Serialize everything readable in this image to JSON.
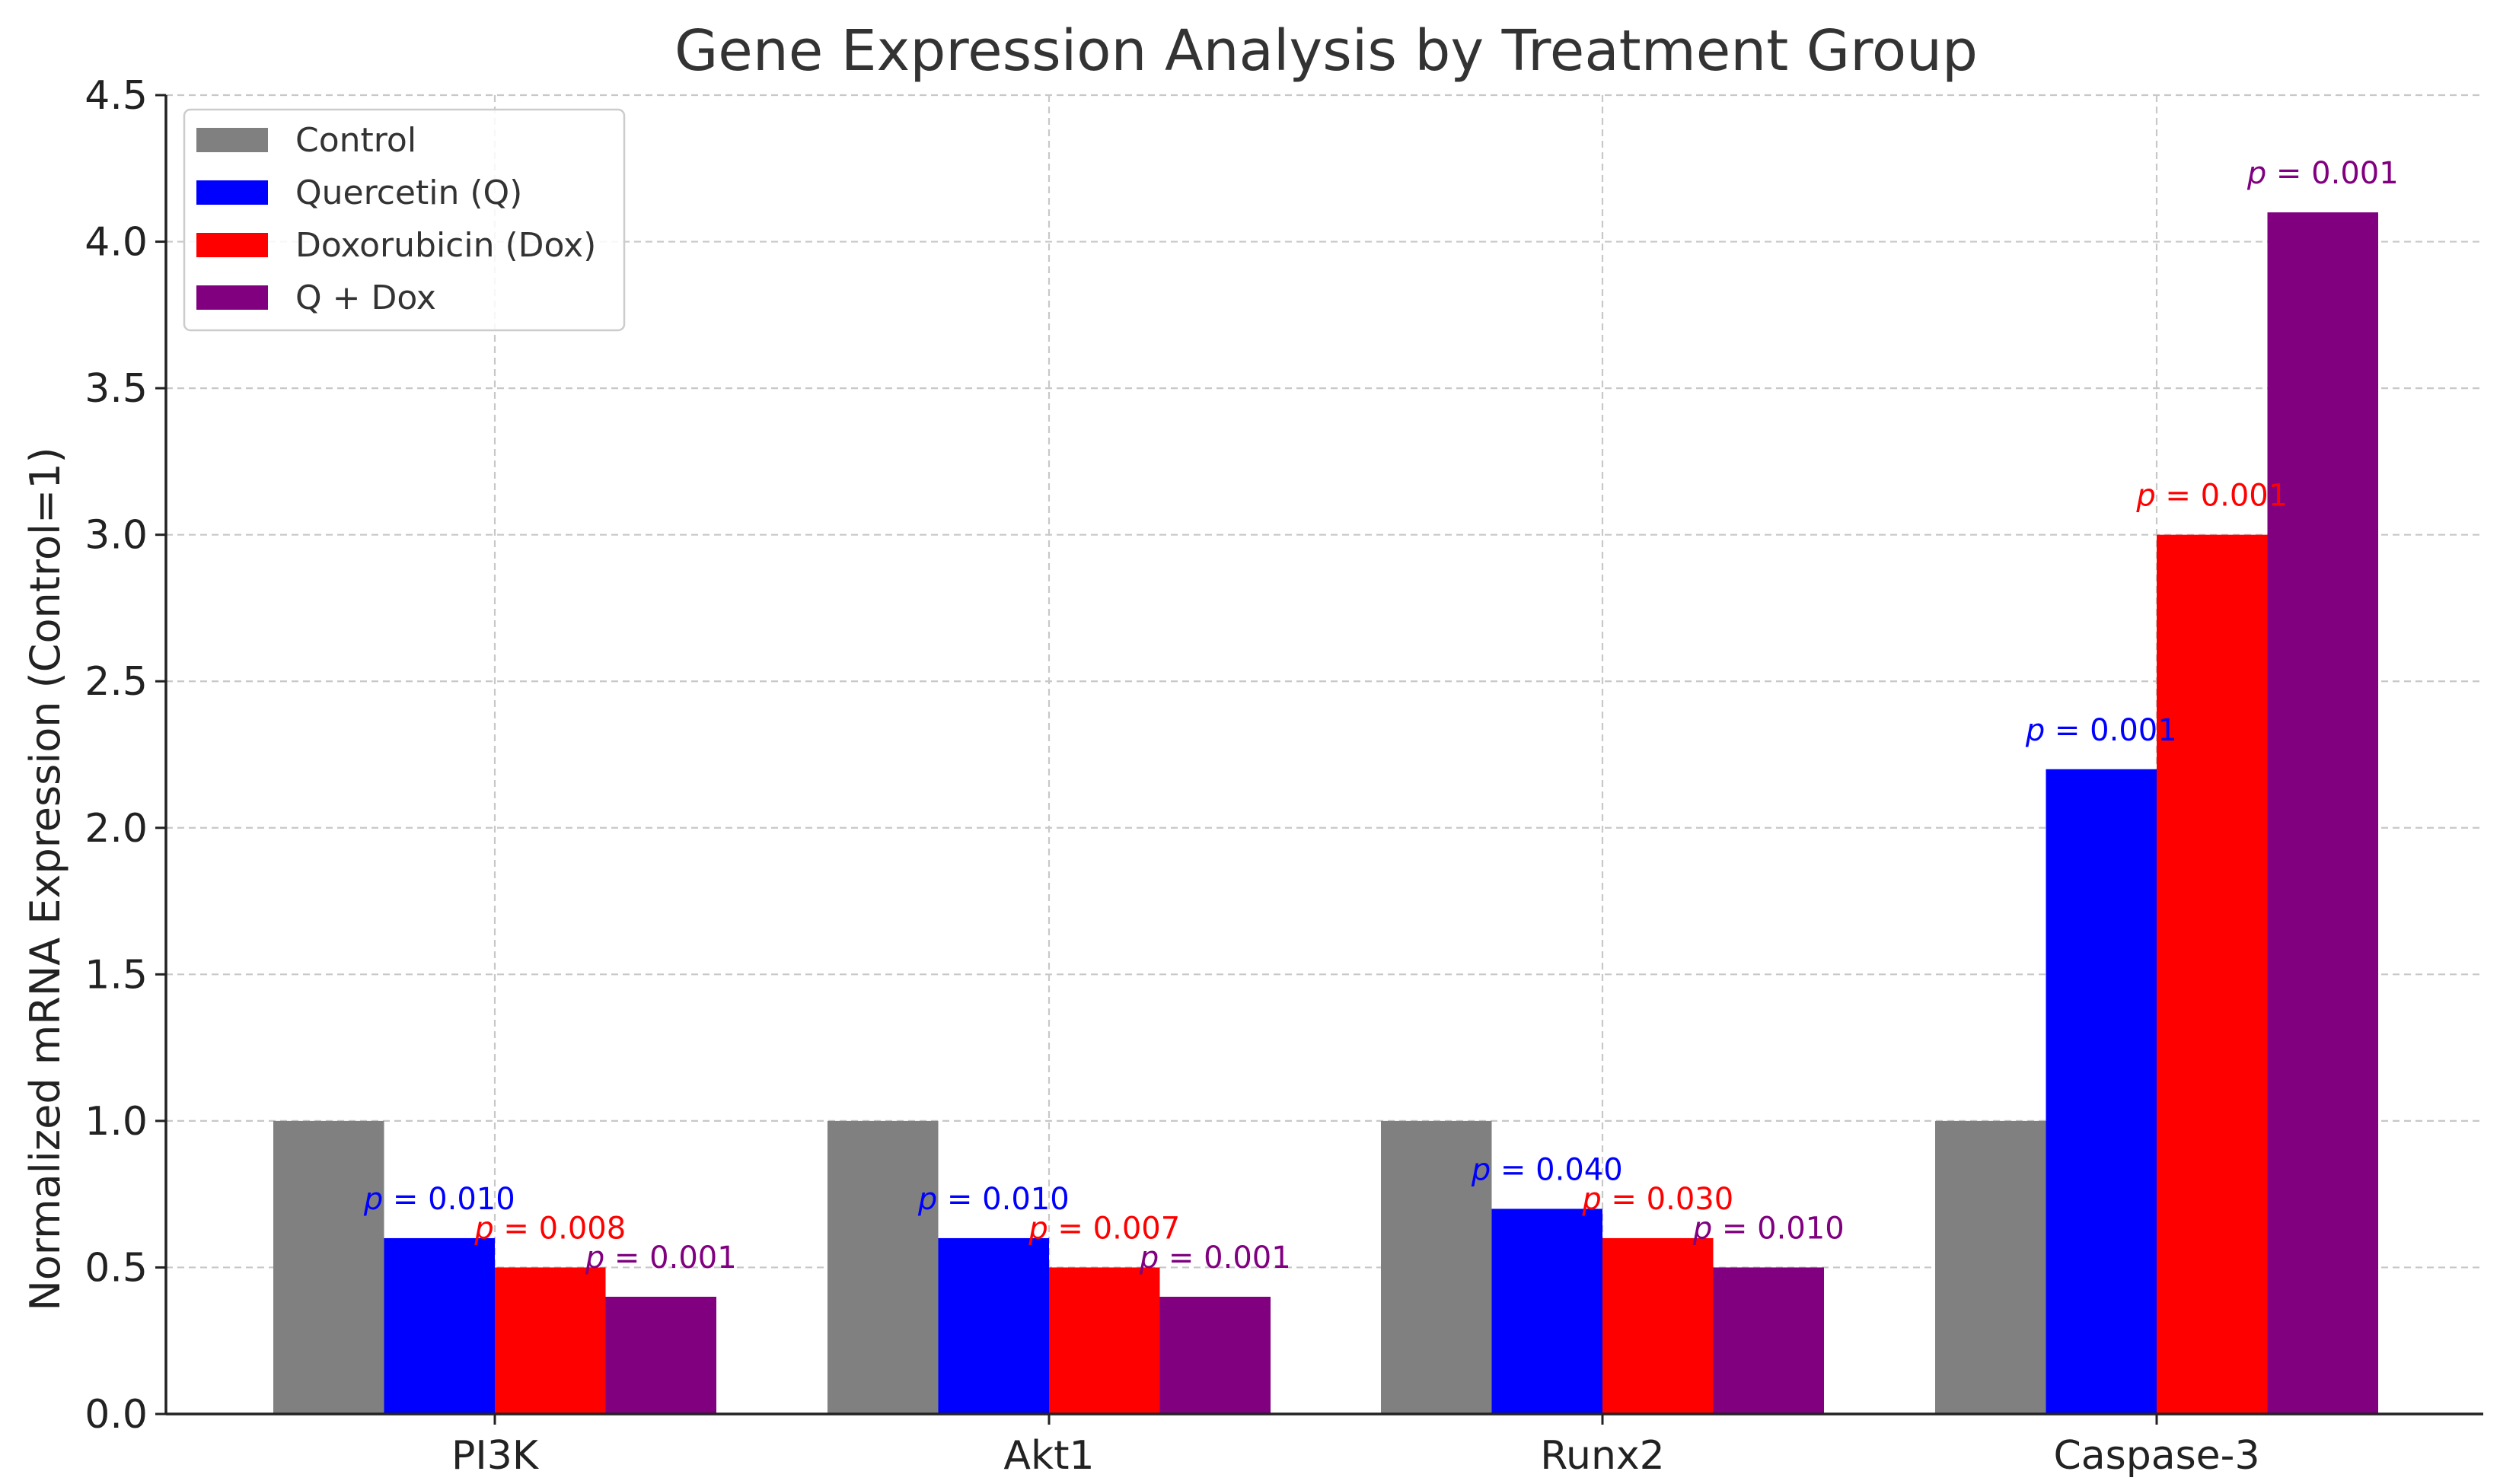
{
  "chart_data": {
    "type": "bar",
    "title": "Gene Expression Analysis by Treatment Group",
    "xlabel": "",
    "ylabel": "Normalized mRNA Expression (Control=1)",
    "ylim": [
      0,
      4.5
    ],
    "yticks": [
      0.0,
      0.5,
      1.0,
      1.5,
      2.0,
      2.5,
      3.0,
      3.5,
      4.0,
      4.5
    ],
    "ytick_labels": [
      "0.0",
      "0.5",
      "1.0",
      "1.5",
      "2.0",
      "2.5",
      "3.0",
      "3.5",
      "4.0",
      "4.5"
    ],
    "grid": true,
    "legend_position": "top-left",
    "categories": [
      "PI3K",
      "Akt1",
      "Runx2",
      "Caspase-3"
    ],
    "series": [
      {
        "name": "Control",
        "color": "#808080",
        "values": [
          1.0,
          1.0,
          1.0,
          1.0
        ],
        "pvalues": [
          null,
          null,
          null,
          null
        ]
      },
      {
        "name": "Quercetin (Q)",
        "color": "#0000ff",
        "values": [
          0.6,
          0.6,
          0.7,
          2.2
        ],
        "pvalues": [
          "0.010",
          "0.010",
          "0.040",
          "0.001"
        ]
      },
      {
        "name": "Doxorubicin (Dox)",
        "color": "#ff0000",
        "values": [
          0.5,
          0.5,
          0.6,
          3.0
        ],
        "pvalues": [
          "0.008",
          "0.007",
          "0.030",
          "0.001"
        ]
      },
      {
        "name": "Q + Dox",
        "color": "#800080",
        "values": [
          0.4,
          0.4,
          0.5,
          4.1
        ],
        "pvalues": [
          "0.001",
          "0.001",
          "0.010",
          "0.001"
        ]
      }
    ],
    "pvalue_prefix": "p",
    "pvalue_separator": " = "
  }
}
